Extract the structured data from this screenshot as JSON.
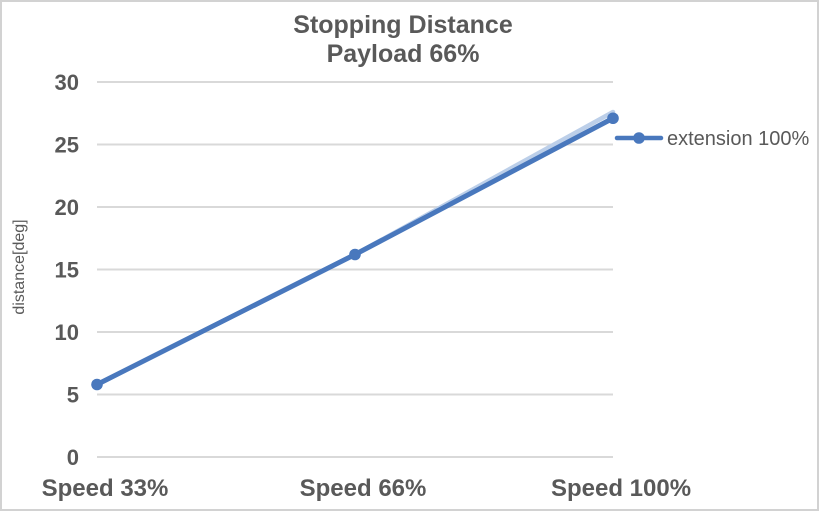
{
  "window": {
    "background": "#ffffff",
    "border_color": "#d2d2d2"
  },
  "chart_data": {
    "type": "line",
    "title": "Stopping Distance",
    "subtitle": "Payload 66%",
    "categories": [
      "Speed 33%",
      "Speed 66%",
      "Speed 100%"
    ],
    "series": [
      {
        "name": "extension 100%",
        "color": "#4978BD",
        "marker": "circle",
        "values": [
          5.8,
          16.2,
          27.1
        ]
      }
    ],
    "ghost_line": {
      "color": "#BCCFE9",
      "values": [
        5.8,
        16.2,
        27.6
      ]
    },
    "xlabel": "",
    "ylabel": "distance[deg]",
    "ylim": [
      0,
      30
    ],
    "yticks": [
      0,
      5,
      10,
      15,
      20,
      25,
      30
    ],
    "grid": true,
    "grid_color": "#D9D9D9",
    "text_color": "#595959",
    "legend_position": "right"
  }
}
